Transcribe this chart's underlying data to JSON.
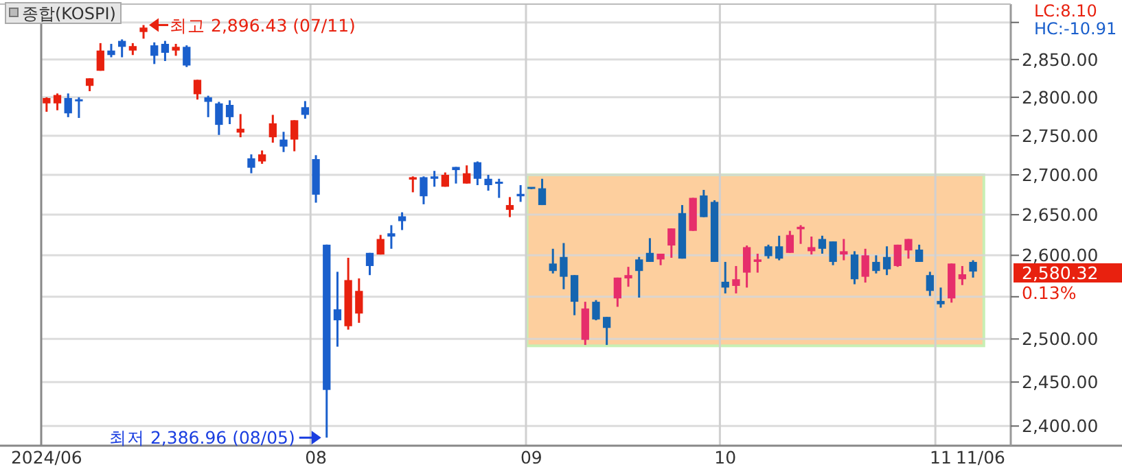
{
  "chart_data": {
    "type": "candlestick",
    "title": "종합(KOSPI)",
    "categories": [
      "2024/06",
      null,
      null,
      null,
      null,
      null,
      null,
      null,
      null,
      null,
      null,
      null,
      null,
      null,
      null,
      null,
      null,
      null,
      null,
      null,
      null,
      null,
      null,
      null,
      null,
      "08",
      null,
      null,
      null,
      null,
      null,
      null,
      null,
      null,
      null,
      null,
      null,
      null,
      null,
      null,
      null,
      null,
      null,
      null,
      null,
      "09",
      null,
      null,
      null,
      null,
      null,
      null,
      null,
      null,
      null,
      null,
      null,
      null,
      null,
      null,
      null,
      null,
      null,
      "10",
      null,
      null,
      null,
      null,
      null,
      null,
      null,
      null,
      null,
      null,
      null,
      null,
      null,
      null,
      null,
      null,
      null,
      null,
      null,
      "11",
      null,
      null,
      null,
      null,
      null,
      null
    ],
    "ohlc": [
      [
        2792,
        2800,
        2781,
        2799
      ],
      [
        2792,
        2805,
        2783,
        2803
      ],
      [
        2799,
        2805,
        2774,
        2779
      ],
      [
        2797,
        2800,
        2773,
        2795
      ],
      [
        2815,
        2825,
        2808,
        2825
      ],
      [
        2835,
        2872,
        2835,
        2862
      ],
      [
        2862,
        2871,
        2853,
        2856
      ],
      [
        2875,
        2877,
        2853,
        2867
      ],
      [
        2862,
        2872,
        2856,
        2868
      ],
      [
        2887,
        2896.43,
        2878,
        2893
      ],
      [
        2869,
        2873,
        2844,
        2855
      ],
      [
        2871,
        2875,
        2848,
        2859
      ],
      [
        2862,
        2871,
        2855,
        2867
      ],
      [
        2867,
        2869,
        2840,
        2842
      ],
      [
        2804,
        2823,
        2797,
        2823
      ],
      [
        2800,
        2802,
        2774,
        2794
      ],
      [
        2792,
        2794,
        2751,
        2764
      ],
      [
        2790,
        2796,
        2765,
        2774
      ],
      [
        2754,
        2778,
        2748,
        2759
      ],
      [
        2721,
        2726,
        2702,
        2709
      ],
      [
        2717,
        2731,
        2714,
        2726
      ],
      [
        2748,
        2777,
        2741,
        2766
      ],
      [
        2745,
        2755,
        2729,
        2736
      ],
      [
        2745,
        2770,
        2730,
        2770
      ],
      [
        2787,
        2795,
        2772,
        2777
      ],
      [
        2720,
        2725,
        2665,
        2675
      ],
      [
        2613,
        2613,
        2386.96,
        2441
      ],
      [
        2535,
        2580,
        2491,
        2522
      ],
      [
        2515,
        2597,
        2511,
        2570
      ],
      [
        2530,
        2572,
        2519,
        2557
      ],
      [
        2603,
        2603,
        2576,
        2587
      ],
      [
        2601,
        2625,
        2601,
        2620
      ],
      [
        2627,
        2637,
        2608,
        2623
      ],
      [
        2648,
        2653,
        2631,
        2642
      ],
      [
        2694,
        2698,
        2678,
        2697
      ],
      [
        2697,
        2698,
        2663,
        2673
      ],
      [
        2698,
        2705,
        2685,
        2695
      ],
      [
        2685,
        2703,
        2685,
        2700
      ],
      [
        2710,
        2710,
        2689,
        2706
      ],
      [
        2689,
        2712,
        2689,
        2702
      ],
      [
        2716,
        2717,
        2687,
        2695
      ],
      [
        2695,
        2700,
        2680,
        2687
      ],
      [
        2691,
        2695,
        2671,
        2689
      ],
      [
        2656,
        2672,
        2647,
        2662
      ],
      [
        2676,
        2687,
        2666,
        2673
      ],
      [
        2684,
        2684,
        2682,
        2683
      ],
      [
        2683,
        2695,
        2662,
        2662
      ],
      [
        2590,
        2608,
        2578,
        2581
      ],
      [
        2598,
        2615,
        2559,
        2574
      ],
      [
        2576,
        2576,
        2528,
        2544
      ],
      [
        2499,
        2544,
        2493,
        2536
      ],
      [
        2544,
        2546,
        2522,
        2523
      ],
      [
        2526,
        2526,
        2493,
        2513
      ],
      [
        2548,
        2573,
        2538,
        2573
      ],
      [
        2572,
        2586,
        2562,
        2576
      ],
      [
        2595,
        2598,
        2549,
        2581
      ],
      [
        2603,
        2621,
        2592,
        2592
      ],
      [
        2595,
        2602,
        2588,
        2602
      ],
      [
        2612,
        2633,
        2597,
        2633
      ],
      [
        2652,
        2662,
        2596,
        2596
      ],
      [
        2630,
        2671,
        2630,
        2671
      ],
      [
        2674,
        2681,
        2647,
        2647
      ],
      [
        2666,
        2668,
        2592,
        2592
      ],
      [
        2568,
        2592,
        2554,
        2561
      ],
      [
        2563,
        2587,
        2554,
        2571
      ],
      [
        2579,
        2612,
        2561,
        2610
      ],
      [
        2592,
        2602,
        2579,
        2595
      ],
      [
        2611,
        2613,
        2596,
        2599
      ],
      [
        2611,
        2624,
        2594,
        2596
      ],
      [
        2603,
        2630,
        2603,
        2625
      ],
      [
        2632,
        2637,
        2614,
        2635
      ],
      [
        2605,
        2623,
        2601,
        2610
      ],
      [
        2620,
        2624,
        2602,
        2608
      ],
      [
        2617,
        2617,
        2588,
        2592
      ],
      [
        2601,
        2620,
        2594,
        2605
      ],
      [
        2601,
        2605,
        2565,
        2571
      ],
      [
        2574,
        2608,
        2567,
        2600
      ],
      [
        2592,
        2600,
        2578,
        2581
      ],
      [
        2598,
        2611,
        2576,
        2583
      ],
      [
        2587,
        2613,
        2586,
        2613
      ],
      [
        2606,
        2620,
        2596,
        2620
      ],
      [
        2607,
        2613,
        2592,
        2592
      ],
      [
        2576,
        2580,
        2551,
        2557
      ],
      [
        2545,
        2561,
        2537,
        2541
      ],
      [
        2548,
        2590,
        2543,
        2590
      ],
      [
        2571,
        2587,
        2564,
        2577
      ],
      [
        2592,
        2594,
        2573,
        2580.32
      ],
      null,
      null,
      null
    ],
    "colors": [
      "#e8210f",
      "#e8210f",
      "#1a5fcc",
      "#1a5fcc",
      "#e8210f",
      "#e8210f",
      "#1a5fcc",
      "#1a5fcc",
      "#e8210f",
      "#e8210f",
      "#1a5fcc",
      "#1a5fcc",
      "#e8210f",
      "#1a5fcc",
      "#e8210f",
      "#1a5fcc",
      "#1a5fcc",
      "#1a5fcc",
      "#e8210f",
      "#1a5fcc",
      "#e8210f",
      "#e8210f",
      "#1a5fcc",
      "#e8210f",
      "#1a5fcc",
      "#1a5fcc",
      "#1a5fcc",
      "#1a5fcc",
      "#e8210f",
      "#e8210f",
      "#1a5fcc",
      "#e8210f",
      "#1a5fcc",
      "#1a5fcc",
      "#e8210f",
      "#1a5fcc",
      "#1a5fcc",
      "#e8210f",
      "#1a5fcc",
      "#e8210f",
      "#1a5fcc",
      "#1a5fcc",
      "#1a5fcc",
      "#e8210f",
      "#1a5fcc",
      "#1565b0",
      "#1565b0",
      "#1565b0",
      "#1565b0",
      "#1565b0",
      "#e62e6b",
      "#1565b0",
      "#1565b0",
      "#e62e6b",
      "#e62e6b",
      "#1565b0",
      "#1565b0",
      "#e62e6b",
      "#e62e6b",
      "#1565b0",
      "#e62e6b",
      "#1565b0",
      "#1565b0",
      "#1565b0",
      "#e62e6b",
      "#e62e6b",
      "#e62e6b",
      "#1565b0",
      "#1565b0",
      "#e62e6b",
      "#e62e6b",
      "#e62e6b",
      "#1565b0",
      "#1565b0",
      "#e62e6b",
      "#1565b0",
      "#e62e6b",
      "#1565b0",
      "#1565b0",
      "#e62e6b",
      "#e62e6b",
      "#1565b0",
      "#1565b0",
      "#1565b0",
      "#e62e6b",
      "#e62e6b",
      "#1565b0",
      null,
      null,
      null
    ],
    "log": "y",
    "ylim": [
      2378,
      2925
    ],
    "yticks": [
      {
        "value": 2400,
        "label": "2,400.00"
      },
      {
        "value": 2450,
        "label": "2,450.00"
      },
      {
        "value": 2500,
        "label": "2,500.00"
      },
      {
        "value": 2550,
        "label": null
      },
      {
        "value": 2600,
        "label": "2,600.00"
      },
      {
        "value": 2650,
        "label": "2,650.00"
      },
      {
        "value": 2700,
        "label": "2,700.00"
      },
      {
        "value": 2750,
        "label": "2,750.00"
      },
      {
        "value": 2800,
        "label": "2,800.00"
      },
      {
        "value": 2850,
        "label": "2,850.00"
      },
      {
        "value": 2900,
        "label": null
      }
    ],
    "grid": true,
    "bands": [
      {
        "axis": "y",
        "from": 2492,
        "to": 2700,
        "color": "#fdcf9e"
      }
    ],
    "annotations": [
      "최고 2,896.43 (07/11)",
      "최저 2,386.96 (08/05)",
      "2,580.32",
      "0.13%",
      "LC:8.10",
      "HC:-10.91",
      "11/06"
    ]
  }
}
